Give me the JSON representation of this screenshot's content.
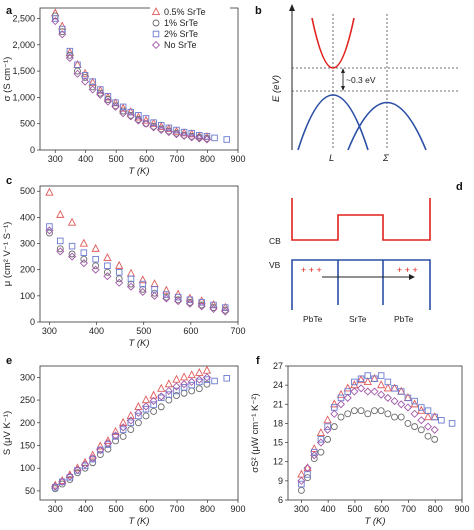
{
  "colors": {
    "red": "#e05a5a",
    "gray": "#6b6b6b",
    "blue": "#6b7bd0",
    "purple": "#a058a8",
    "band_red": "#e0201b",
    "band_blue": "#2b4fa5"
  },
  "legend": [
    "0.5% SrTe",
    "1% SrTe",
    "2% SrTe",
    "No SrTe"
  ],
  "chart_data": [
    {
      "panel": "a",
      "type": "scatter",
      "xlabel": "T (K)",
      "ylabel": "σ (S cm⁻¹)",
      "xlim": [
        250,
        900
      ],
      "ylim": [
        0,
        2700
      ],
      "xticks": [
        300,
        400,
        500,
        600,
        700,
        800,
        900
      ],
      "yticks": [
        0,
        500,
        1000,
        1500,
        2000,
        2500
      ],
      "ytick_labels": [
        "0",
        "500",
        "1,000",
        "1,500",
        "2,000",
        "2,500"
      ],
      "series": [
        {
          "name": "0.5% SrTe",
          "marker": "triangle",
          "x": [
            300,
            323,
            348,
            373,
            398,
            423,
            448,
            473,
            498,
            523,
            548,
            573,
            598,
            623,
            648,
            673,
            698,
            723,
            748,
            773,
            798
          ],
          "y": [
            2600,
            2350,
            1850,
            1620,
            1450,
            1280,
            1130,
            1000,
            890,
            790,
            720,
            620,
            560,
            500,
            440,
            400,
            350,
            320,
            300,
            260,
            250
          ]
        },
        {
          "name": "1% SrTe",
          "marker": "circle",
          "x": [
            300,
            323,
            348,
            373,
            398,
            423,
            448,
            473,
            498,
            523,
            548,
            573,
            598,
            623,
            648,
            673,
            698,
            723,
            748,
            773,
            798
          ],
          "y": [
            2550,
            2250,
            1800,
            1500,
            1380,
            1200,
            1080,
            960,
            840,
            740,
            660,
            580,
            500,
            450,
            400,
            360,
            320,
            280,
            260,
            240,
            220
          ]
        },
        {
          "name": "2% SrTe",
          "marker": "square",
          "x": [
            300,
            323,
            348,
            373,
            398,
            423,
            448,
            473,
            498,
            523,
            548,
            573,
            598,
            623,
            648,
            673,
            698,
            723,
            748,
            773,
            798,
            823,
            863
          ],
          "y": [
            2500,
            2300,
            1880,
            1620,
            1420,
            1300,
            1150,
            1020,
            900,
            820,
            720,
            660,
            600,
            520,
            470,
            420,
            380,
            340,
            320,
            280,
            260,
            230,
            200
          ]
        },
        {
          "name": "No SrTe",
          "marker": "diamond",
          "x": [
            300,
            323,
            348,
            373,
            398,
            423,
            448,
            473,
            498,
            523,
            548,
            573,
            598,
            623,
            648,
            673,
            698,
            723,
            748,
            773,
            798
          ],
          "y": [
            2450,
            2200,
            1750,
            1450,
            1300,
            1150,
            1050,
            920,
            820,
            700,
            640,
            560,
            500,
            430,
            380,
            340,
            300,
            270,
            240,
            220,
            200
          ]
        }
      ]
    },
    {
      "panel": "c",
      "type": "scatter",
      "xlabel": "T (K)",
      "ylabel": "μ (cm² V⁻¹ S⁻¹)",
      "xlim": [
        280,
        700
      ],
      "ylim": [
        0,
        520
      ],
      "xticks": [
        300,
        400,
        500,
        600,
        700
      ],
      "yticks": [
        0,
        100,
        200,
        300,
        400,
        500
      ],
      "ytick_labels": [
        "0",
        "100",
        "200",
        "300",
        "400",
        "500"
      ],
      "series": [
        {
          "name": "0.5% SrTe",
          "marker": "triangle",
          "x": [
            300,
            323,
            348,
            373,
            398,
            423,
            448,
            473,
            498,
            523,
            548,
            573,
            598,
            623,
            648,
            673
          ],
          "y": [
            495,
            410,
            380,
            300,
            280,
            245,
            215,
            185,
            160,
            145,
            120,
            105,
            90,
            80,
            65,
            55
          ]
        },
        {
          "name": "1% SrTe",
          "marker": "circle",
          "x": [
            300,
            323,
            348,
            373,
            398,
            423,
            448,
            473,
            498,
            523,
            548,
            573,
            598,
            623,
            648,
            673
          ],
          "y": [
            340,
            280,
            260,
            240,
            215,
            190,
            165,
            145,
            125,
            110,
            95,
            85,
            75,
            65,
            55,
            45
          ]
        },
        {
          "name": "2% SrTe",
          "marker": "square",
          "x": [
            300,
            323,
            348,
            373,
            398,
            423,
            448,
            473,
            498,
            523,
            548,
            573,
            598,
            623,
            648,
            673
          ],
          "y": [
            365,
            310,
            290,
            265,
            240,
            215,
            190,
            165,
            145,
            125,
            105,
            95,
            85,
            75,
            65,
            55
          ]
        },
        {
          "name": "No SrTe",
          "marker": "diamond",
          "x": [
            300,
            323,
            348,
            373,
            398,
            423,
            448,
            473,
            498,
            523,
            548,
            573,
            598,
            623,
            648,
            673
          ],
          "y": [
            350,
            270,
            250,
            225,
            200,
            175,
            150,
            135,
            115,
            100,
            90,
            80,
            70,
            60,
            50,
            40
          ]
        }
      ]
    },
    {
      "panel": "e",
      "type": "scatter",
      "xlabel": "T (K)",
      "ylabel": "S (μV K⁻¹)",
      "xlim": [
        250,
        900
      ],
      "ylim": [
        30,
        325
      ],
      "xticks": [
        300,
        400,
        500,
        600,
        700,
        800,
        900
      ],
      "yticks": [
        50,
        100,
        150,
        200,
        250,
        300
      ],
      "ytick_labels": [
        "50",
        "100",
        "150",
        "200",
        "250",
        "300"
      ],
      "series": [
        {
          "name": "0.5% SrTe",
          "marker": "triangle",
          "x": [
            300,
            323,
            348,
            373,
            398,
            423,
            448,
            473,
            498,
            523,
            548,
            573,
            598,
            623,
            648,
            673,
            698,
            723,
            748,
            773,
            798
          ],
          "y": [
            62,
            72,
            85,
            100,
            112,
            128,
            148,
            160,
            180,
            200,
            215,
            235,
            250,
            260,
            275,
            285,
            295,
            300,
            305,
            310,
            315
          ]
        },
        {
          "name": "1% SrTe",
          "marker": "circle",
          "x": [
            300,
            323,
            348,
            373,
            398,
            423,
            448,
            473,
            498,
            523,
            548,
            573,
            598,
            623,
            648,
            673,
            698,
            723,
            748,
            773,
            798
          ],
          "y": [
            55,
            65,
            75,
            90,
            100,
            112,
            130,
            142,
            160,
            170,
            185,
            200,
            215,
            225,
            235,
            250,
            260,
            265,
            270,
            275,
            285
          ]
        },
        {
          "name": "2% SrTe",
          "marker": "square",
          "x": [
            300,
            323,
            348,
            373,
            398,
            423,
            448,
            473,
            498,
            523,
            548,
            573,
            598,
            623,
            648,
            673,
            698,
            723,
            748,
            773,
            798,
            823,
            863
          ],
          "y": [
            58,
            70,
            80,
            95,
            105,
            120,
            140,
            152,
            170,
            185,
            200,
            215,
            230,
            240,
            255,
            262,
            270,
            278,
            283,
            290,
            295,
            292,
            298
          ]
        },
        {
          "name": "No SrTe",
          "marker": "diamond",
          "x": [
            300,
            323,
            348,
            373,
            398,
            423,
            448,
            473,
            498,
            523,
            548,
            573,
            598,
            623,
            648,
            673,
            698,
            723,
            748,
            773,
            798
          ],
          "y": [
            60,
            70,
            82,
            96,
            108,
            122,
            140,
            155,
            172,
            190,
            205,
            222,
            236,
            248,
            258,
            270,
            280,
            285,
            290,
            295,
            300
          ]
        }
      ]
    },
    {
      "panel": "f",
      "type": "scatter",
      "xlabel": "T (K)",
      "ylabel": "σS² (μW cm⁻¹ K⁻²)",
      "xlim": [
        250,
        900
      ],
      "ylim": [
        6,
        27
      ],
      "xticks": [
        300,
        400,
        500,
        600,
        700,
        800,
        900
      ],
      "yticks": [
        6,
        9,
        12,
        15,
        18,
        21,
        24,
        27
      ],
      "ytick_labels": [
        "6",
        "9",
        "12",
        "15",
        "18",
        "21",
        "24",
        "27"
      ],
      "series": [
        {
          "name": "0.5% SrTe",
          "marker": "triangle",
          "x": [
            300,
            323,
            348,
            373,
            398,
            423,
            448,
            473,
            498,
            523,
            548,
            573,
            598,
            623,
            648,
            673,
            698,
            723,
            748,
            773,
            798
          ],
          "y": [
            10,
            11,
            14,
            16.5,
            18.5,
            21,
            22.5,
            23.5,
            24,
            24.8,
            24.5,
            25,
            24,
            23.5,
            23.5,
            23,
            22,
            21,
            20,
            19,
            19
          ]
        },
        {
          "name": "1% SrTe",
          "marker": "circle",
          "x": [
            300,
            323,
            348,
            373,
            398,
            423,
            448,
            473,
            498,
            523,
            548,
            573,
            598,
            623,
            648,
            673,
            698,
            723,
            748,
            773,
            798
          ],
          "y": [
            7.5,
            9.5,
            12.5,
            13.5,
            15.5,
            17.5,
            19,
            19.5,
            20,
            20,
            19.5,
            20,
            20,
            19.5,
            19,
            19,
            18,
            17.5,
            17,
            16,
            15.5
          ]
        },
        {
          "name": "2% SrTe",
          "marker": "square",
          "x": [
            300,
            323,
            348,
            373,
            398,
            423,
            448,
            473,
            498,
            523,
            548,
            573,
            598,
            623,
            648,
            673,
            698,
            723,
            748,
            773,
            798,
            823,
            863
          ],
          "y": [
            8.5,
            10,
            13.5,
            15.5,
            17.5,
            20.5,
            22,
            23,
            24.5,
            25,
            25.5,
            25,
            25.5,
            24.5,
            23.5,
            23,
            22,
            21.5,
            20.5,
            20,
            19,
            18.5,
            18
          ]
        },
        {
          "name": "No SrTe",
          "marker": "diamond",
          "x": [
            300,
            323,
            348,
            373,
            398,
            423,
            448,
            473,
            498,
            523,
            548,
            573,
            598,
            623,
            648,
            673,
            698,
            723,
            748,
            773,
            798
          ],
          "y": [
            9,
            11,
            13,
            15,
            17,
            19.5,
            21,
            22,
            23,
            23.5,
            23,
            23,
            22.5,
            22,
            21.5,
            21,
            20.5,
            19.5,
            18.5,
            17.5,
            17
          ]
        }
      ]
    }
  ],
  "diagram_b": {
    "label": "b",
    "ylabel": "E (eV)",
    "gap": "~0.3 eV",
    "xlabel_L": "L",
    "xlabel_Sigma": "Σ"
  },
  "diagram_d": {
    "label": "d",
    "cb": "CB",
    "vb": "VB",
    "holes_left": "+ + +",
    "holes_right": "+ + +",
    "pbte_left": "PbTe",
    "srte": "SrTe",
    "pbte_right": "PbTe"
  }
}
